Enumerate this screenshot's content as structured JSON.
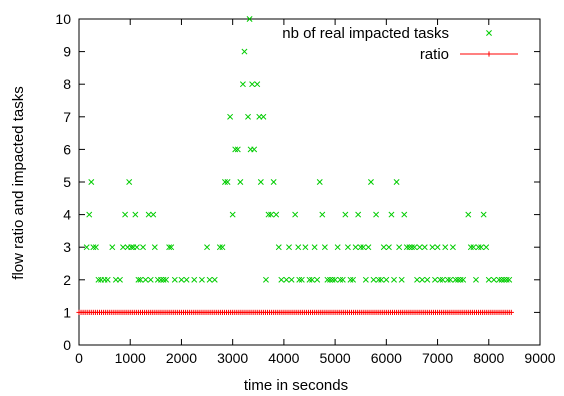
{
  "chart_data": {
    "type": "scatter",
    "xlabel": "time in seconds",
    "ylabel": "flow ratio and impacted tasks",
    "xlim": [
      0,
      9000
    ],
    "ylim": [
      0,
      10
    ],
    "xticks": [
      "0",
      "1000",
      "2000",
      "3000",
      "4000",
      "5000",
      "6000",
      "7000",
      "8000",
      "9000"
    ],
    "yticks": [
      "0",
      "1",
      "2",
      "3",
      "4",
      "5",
      "6",
      "7",
      "8",
      "9",
      "10"
    ],
    "grid": false,
    "legend_position": "top-right",
    "series": [
      {
        "name": "nb of real impacted tasks",
        "marker": "x",
        "color": "#00cc00",
        "points": [
          [
            150,
            3
          ],
          [
            200,
            4
          ],
          [
            240,
            5
          ],
          [
            280,
            3
          ],
          [
            330,
            3
          ],
          [
            380,
            2
          ],
          [
            430,
            2
          ],
          [
            500,
            2
          ],
          [
            560,
            2
          ],
          [
            650,
            3
          ],
          [
            720,
            2
          ],
          [
            800,
            2
          ],
          [
            860,
            3
          ],
          [
            900,
            4
          ],
          [
            950,
            3
          ],
          [
            980,
            5
          ],
          [
            1020,
            3
          ],
          [
            1060,
            3
          ],
          [
            1100,
            4
          ],
          [
            1130,
            3
          ],
          [
            1160,
            2
          ],
          [
            1200,
            2
          ],
          [
            1250,
            3
          ],
          [
            1300,
            2
          ],
          [
            1360,
            4
          ],
          [
            1400,
            2
          ],
          [
            1450,
            4
          ],
          [
            1480,
            3
          ],
          [
            1540,
            2
          ],
          [
            1600,
            2
          ],
          [
            1650,
            2
          ],
          [
            1700,
            2
          ],
          [
            1760,
            3
          ],
          [
            1800,
            3
          ],
          [
            1870,
            2
          ],
          [
            2000,
            2
          ],
          [
            2100,
            2
          ],
          [
            2250,
            2
          ],
          [
            2400,
            2
          ],
          [
            2500,
            3
          ],
          [
            2550,
            2
          ],
          [
            2650,
            2
          ],
          [
            2750,
            3
          ],
          [
            2800,
            3
          ],
          [
            2850,
            5
          ],
          [
            2900,
            5
          ],
          [
            2950,
            7
          ],
          [
            3000,
            4
          ],
          [
            3050,
            6
          ],
          [
            3100,
            6
          ],
          [
            3150,
            5
          ],
          [
            3200,
            8
          ],
          [
            3230,
            9
          ],
          [
            3300,
            7
          ],
          [
            3330,
            10
          ],
          [
            3350,
            6
          ],
          [
            3380,
            8
          ],
          [
            3420,
            6
          ],
          [
            3480,
            8
          ],
          [
            3520,
            7
          ],
          [
            3550,
            5
          ],
          [
            3600,
            7
          ],
          [
            3650,
            2
          ],
          [
            3700,
            4
          ],
          [
            3750,
            4
          ],
          [
            3800,
            5
          ],
          [
            3850,
            4
          ],
          [
            3900,
            3
          ],
          [
            3950,
            2
          ],
          [
            4050,
            2
          ],
          [
            4100,
            3
          ],
          [
            4150,
            2
          ],
          [
            4220,
            4
          ],
          [
            4280,
            3
          ],
          [
            4300,
            2
          ],
          [
            4350,
            2
          ],
          [
            4420,
            3
          ],
          [
            4500,
            2
          ],
          [
            4550,
            2
          ],
          [
            4600,
            3
          ],
          [
            4650,
            2
          ],
          [
            4700,
            5
          ],
          [
            4750,
            4
          ],
          [
            4800,
            3
          ],
          [
            4850,
            2
          ],
          [
            4900,
            2
          ],
          [
            4950,
            2
          ],
          [
            5000,
            2
          ],
          [
            5050,
            3
          ],
          [
            5100,
            2
          ],
          [
            5150,
            2
          ],
          [
            5200,
            4
          ],
          [
            5250,
            3
          ],
          [
            5300,
            2
          ],
          [
            5350,
            2
          ],
          [
            5400,
            3
          ],
          [
            5450,
            4
          ],
          [
            5500,
            3
          ],
          [
            5550,
            3
          ],
          [
            5600,
            2
          ],
          [
            5650,
            3
          ],
          [
            5700,
            5
          ],
          [
            5750,
            2
          ],
          [
            5800,
            4
          ],
          [
            5850,
            2
          ],
          [
            5900,
            2
          ],
          [
            5950,
            3
          ],
          [
            6000,
            2
          ],
          [
            6050,
            3
          ],
          [
            6100,
            4
          ],
          [
            6150,
            2
          ],
          [
            6200,
            5
          ],
          [
            6250,
            3
          ],
          [
            6300,
            2
          ],
          [
            6350,
            4
          ],
          [
            6400,
            3
          ],
          [
            6450,
            3
          ],
          [
            6500,
            3
          ],
          [
            6550,
            3
          ],
          [
            6600,
            2
          ],
          [
            6650,
            3
          ],
          [
            6700,
            2
          ],
          [
            6750,
            3
          ],
          [
            6800,
            2
          ],
          [
            6900,
            3
          ],
          [
            6950,
            2
          ],
          [
            7000,
            3
          ],
          [
            7050,
            2
          ],
          [
            7100,
            2
          ],
          [
            7150,
            3
          ],
          [
            7200,
            2
          ],
          [
            7250,
            2
          ],
          [
            7300,
            3
          ],
          [
            7350,
            2
          ],
          [
            7400,
            2
          ],
          [
            7450,
            2
          ],
          [
            7500,
            2
          ],
          [
            7600,
            4
          ],
          [
            7650,
            3
          ],
          [
            7700,
            3
          ],
          [
            7750,
            2
          ],
          [
            7800,
            3
          ],
          [
            7850,
            3
          ],
          [
            7900,
            4
          ],
          [
            7950,
            3
          ],
          [
            8000,
            2
          ],
          [
            8100,
            2
          ],
          [
            8200,
            2
          ],
          [
            8250,
            2
          ],
          [
            8300,
            2
          ],
          [
            8350,
            2
          ],
          [
            8400,
            2
          ]
        ]
      },
      {
        "name": "ratio",
        "marker": "+",
        "color": "#ff0000",
        "x_start": 0,
        "x_end": 8450,
        "y": 1.0
      }
    ]
  }
}
